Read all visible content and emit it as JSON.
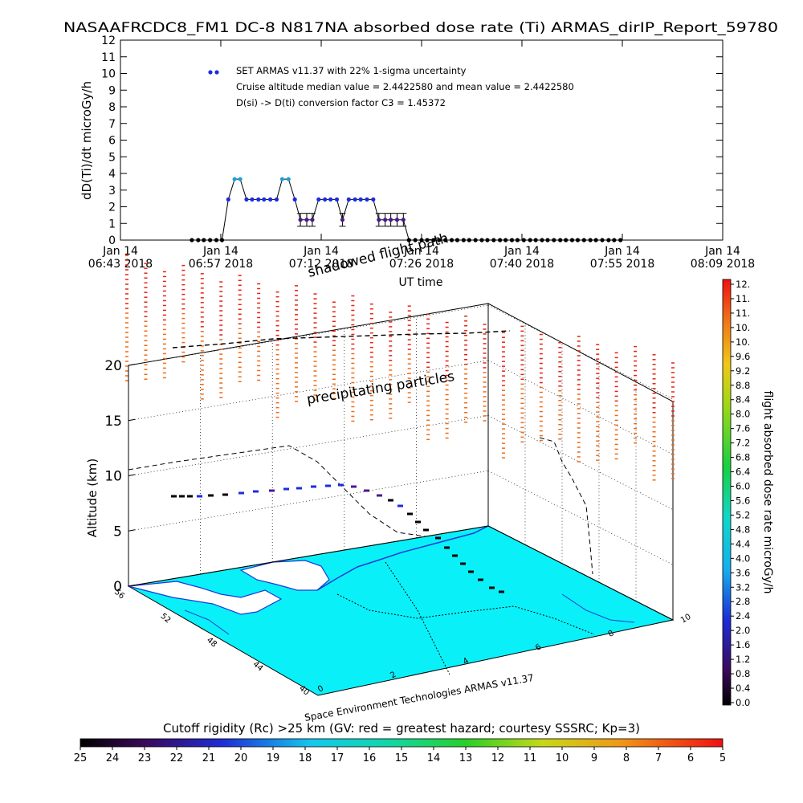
{
  "chart_data": [
    {
      "type": "line",
      "title": "NASAAFRCDC8_FM1  DC-8    N817NA absorbed dose rate (Ti) ARMAS_dirIP_Report_59780",
      "xlabel": "UT time",
      "ylabel": "dD(Ti)/dt microGy/h",
      "ylim": [
        0,
        12
      ],
      "xlim": [
        0,
        86
      ],
      "x_unit": "minutes after Jan 14 2018 06:43",
      "x_ticks": [
        {
          "x": 0,
          "l1": "Jan 14",
          "l2": "06:43 2018"
        },
        {
          "x": 14.33,
          "l1": "Jan 14",
          "l2": "06:57 2018"
        },
        {
          "x": 28.67,
          "l1": "Jan 14",
          "l2": "07:12 2018"
        },
        {
          "x": 43,
          "l1": "Jan 14",
          "l2": "07:26 2018"
        },
        {
          "x": 57.33,
          "l1": "Jan 14",
          "l2": "07:40 2018"
        },
        {
          "x": 71.67,
          "l1": "Jan 14",
          "l2": "07:55 2018"
        },
        {
          "x": 86,
          "l1": "Jan 14",
          "l2": "08:09 2018"
        }
      ],
      "y_ticks": [
        0,
        1,
        2,
        3,
        4,
        5,
        6,
        7,
        8,
        9,
        10,
        11,
        12
      ],
      "legend": {
        "marker_label": "SET ARMAS v11.37 with 22% 1-sigma uncertainty",
        "lines": [
          "Cruise altitude median value = 2.4422580 and mean value = 2.4422580",
          "D(si) -> D(ti) conversion factor C3 = 1.45372"
        ],
        "placement": "top-left"
      },
      "series": [
        {
          "points": [
            [
              10.2,
              0
            ],
            [
              11.1,
              0
            ],
            [
              11.9,
              0
            ],
            [
              12.8,
              0
            ],
            [
              13.7,
              0
            ],
            [
              14.5,
              0
            ],
            [
              15.4,
              2.44
            ],
            [
              16.3,
              3.66
            ],
            [
              17.1,
              3.66
            ],
            [
              18.0,
              2.44
            ],
            [
              18.8,
              2.44
            ],
            [
              19.7,
              2.44
            ],
            [
              20.5,
              2.44
            ],
            [
              21.4,
              2.44
            ],
            [
              22.3,
              2.44
            ],
            [
              23.1,
              3.66
            ],
            [
              24.0,
              3.66
            ],
            [
              24.9,
              2.44
            ],
            [
              25.7,
              1.22
            ],
            [
              26.6,
              1.22
            ],
            [
              27.4,
              1.22
            ],
            [
              28.3,
              2.44
            ],
            [
              29.2,
              2.44
            ],
            [
              30.0,
              2.44
            ],
            [
              30.9,
              2.44
            ],
            [
              31.7,
              1.22
            ],
            [
              32.6,
              2.44
            ],
            [
              33.5,
              2.44
            ],
            [
              34.3,
              2.44
            ],
            [
              35.2,
              2.44
            ],
            [
              36.1,
              2.44
            ],
            [
              36.9,
              1.22
            ],
            [
              37.8,
              1.22
            ],
            [
              38.6,
              1.22
            ],
            [
              39.5,
              1.22
            ],
            [
              40.4,
              1.22
            ],
            [
              41.2,
              0
            ],
            [
              42.1,
              0
            ],
            [
              43.0,
              0
            ],
            [
              43.8,
              0
            ],
            [
              44.7,
              0
            ],
            [
              45.5,
              0
            ],
            [
              46.4,
              0
            ],
            [
              47.3,
              0
            ],
            [
              48.1,
              0
            ],
            [
              49.0,
              0
            ],
            [
              49.8,
              0
            ],
            [
              50.7,
              0
            ],
            [
              51.6,
              0
            ],
            [
              52.4,
              0
            ],
            [
              53.3,
              0
            ],
            [
              54.2,
              0
            ],
            [
              55.0,
              0
            ],
            [
              55.9,
              0
            ],
            [
              56.7,
              0
            ],
            [
              57.6,
              0
            ],
            [
              58.5,
              0
            ],
            [
              59.3,
              0
            ],
            [
              60.2,
              0
            ],
            [
              61.0,
              0
            ],
            [
              61.9,
              0
            ],
            [
              62.8,
              0
            ],
            [
              63.6,
              0
            ],
            [
              64.5,
              0
            ],
            [
              65.3,
              0
            ],
            [
              66.2,
              0
            ],
            [
              67.1,
              0
            ],
            [
              67.9,
              0
            ],
            [
              68.8,
              0
            ],
            [
              69.7,
              0
            ],
            [
              70.5,
              0
            ],
            [
              71.4,
              0
            ]
          ]
        }
      ]
    },
    {
      "type": "scatter",
      "title": "",
      "zlabel": "Altitude (km)",
      "z_ticks": [
        0,
        5,
        10,
        15,
        20
      ],
      "lat_ticks": [
        "56",
        "52",
        "48",
        "44",
        "40"
      ],
      "lon_ticks": [
        "0",
        "2",
        "4",
        "6",
        "8",
        "10"
      ],
      "annotations": [
        "shadowed flight path",
        "precipitating particles"
      ],
      "credit": "Space Environment Technologies ARMAS v11.37",
      "colorbar": {
        "label": "flight absorbed dose rate microGy/h",
        "ticks": [
          "12.",
          "11.",
          "11.",
          "10.",
          "10.",
          "9.6",
          "9.2",
          "8.8",
          "8.4",
          "8.0",
          "7.6",
          "7.2",
          "6.8",
          "6.4",
          "6.0",
          "5.6",
          "5.2",
          "4.8",
          "4.4",
          "4.0",
          "3.6",
          "3.2",
          "2.8",
          "2.4",
          "2.0",
          "1.6",
          "1.2",
          "0.8",
          "0.4",
          "0.0"
        ]
      }
    },
    {
      "type": "heatmap",
      "title": "Cutoff rigidity (Rc) >25 km (GV: red = greatest hazard; courtesy SSSRC; Kp=3)",
      "colorbar_ticks": [
        "25",
        "24",
        "23",
        "22",
        "21",
        "20",
        "19",
        "18",
        "17",
        "16",
        "15",
        "14",
        "13",
        "12",
        "11",
        "10",
        "9",
        "8",
        "7",
        "6",
        "5"
      ]
    }
  ]
}
